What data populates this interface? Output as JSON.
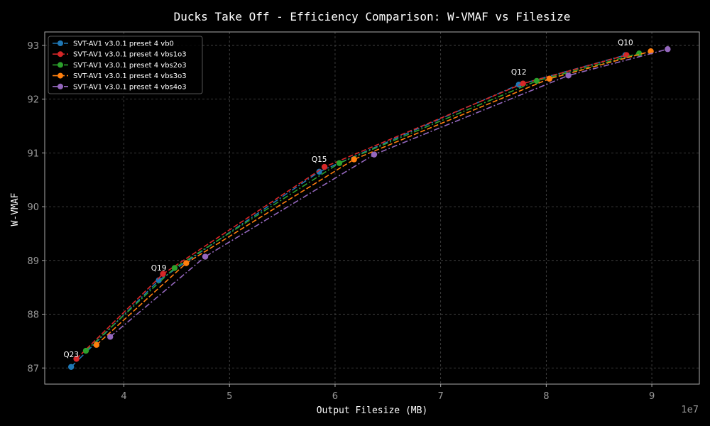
{
  "chart_data": {
    "type": "line",
    "title": "Ducks Take Off - Efficiency Comparison: W-VMAF vs Filesize",
    "xlabel": "Output Filesize (MB)",
    "ylabel": "W-VMAF",
    "x_exponent_label": "1e7",
    "x_scale_factor": 10000000,
    "xlim": [
      3.25,
      9.45
    ],
    "ylim": [
      86.7,
      93.25
    ],
    "x_ticks": [
      4,
      5,
      6,
      7,
      8,
      9
    ],
    "y_ticks": [
      87,
      88,
      89,
      90,
      91,
      92,
      93
    ],
    "grid": true,
    "legend_position": "top-left",
    "annotations": [
      {
        "text": "Q23",
        "x": 3.5,
        "y": 87.02
      },
      {
        "text": "Q19",
        "x": 4.33,
        "y": 88.63
      },
      {
        "text": "Q15",
        "x": 5.85,
        "y": 90.65
      },
      {
        "text": "Q12",
        "x": 7.74,
        "y": 92.27
      },
      {
        "text": "Q10",
        "x": 8.75,
        "y": 92.82
      }
    ],
    "series": [
      {
        "name": "SVT-AV1 v3.0.1 preset 4 vb0",
        "color": "#1f77b4",
        "dash": "dashdot",
        "x": [
          3.5,
          4.33,
          5.85,
          7.74,
          8.75
        ],
        "y": [
          87.02,
          88.63,
          90.65,
          92.27,
          92.82
        ]
      },
      {
        "name": "SVT-AV1 v3.0.1 preset 4 vbs1o3",
        "color": "#d62728",
        "dash": "dashed",
        "x": [
          3.55,
          4.37,
          5.9,
          7.78,
          8.76
        ],
        "y": [
          87.17,
          88.75,
          90.74,
          92.29,
          92.82
        ]
      },
      {
        "name": "SVT-AV1 v3.0.1 preset 4 vbs2o3",
        "color": "#2ca02c",
        "dash": "dashdot",
        "x": [
          3.64,
          4.48,
          6.04,
          7.91,
          8.88
        ],
        "y": [
          87.32,
          88.86,
          90.81,
          92.34,
          92.85
        ]
      },
      {
        "name": "SVT-AV1 v3.0.1 preset 4 vbs3o3",
        "color": "#ff7f0e",
        "dash": "dashed",
        "x": [
          3.74,
          4.59,
          6.18,
          8.03,
          8.99
        ],
        "y": [
          87.43,
          88.95,
          90.88,
          92.38,
          92.89
        ]
      },
      {
        "name": "SVT-AV1 v3.0.1 preset 4 vbs4o3",
        "color": "#9467bd",
        "dash": "dashdot",
        "x": [
          3.87,
          4.77,
          6.37,
          8.21,
          9.15
        ],
        "y": [
          87.58,
          89.07,
          90.97,
          92.44,
          92.93
        ]
      }
    ]
  }
}
